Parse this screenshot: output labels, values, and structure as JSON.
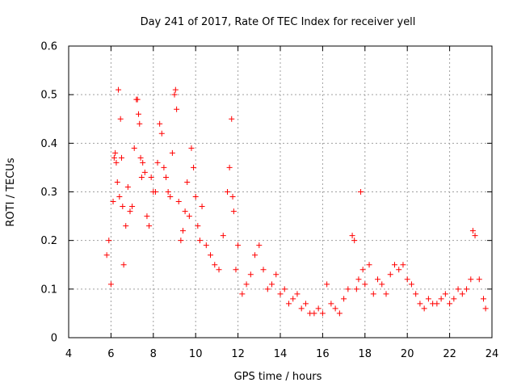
{
  "chart_data": {
    "type": "scatter",
    "title": "Day 241 of 2017, Rate Of TEC Index for receiver yell",
    "xlabel": "GPS time / hours",
    "ylabel": "ROTI / TECUs",
    "xlim": [
      4,
      24
    ],
    "ylim": [
      0,
      0.6
    ],
    "x_ticks": [
      4,
      6,
      8,
      10,
      12,
      14,
      16,
      18,
      20,
      22,
      24
    ],
    "y_ticks": [
      0,
      0.1,
      0.2,
      0.3,
      0.4,
      0.5,
      0.6
    ],
    "x_tick_labels": [
      "4",
      "6",
      "8",
      "10",
      "12",
      "14",
      "16",
      "18",
      "20",
      "22",
      "24"
    ],
    "y_tick_labels": [
      "0",
      "0.1",
      "0.2",
      "0.3",
      "0.4",
      "0.5",
      "0.6"
    ],
    "grid": true,
    "marker": "+",
    "series": [
      {
        "name": "ROTI",
        "color": "#ff0000",
        "x": [
          5.8,
          5.9,
          6.0,
          6.1,
          6.15,
          6.2,
          6.25,
          6.3,
          6.35,
          6.4,
          6.45,
          6.5,
          6.55,
          6.6,
          6.7,
          6.8,
          6.9,
          7.0,
          7.1,
          7.2,
          7.25,
          7.3,
          7.35,
          7.4,
          7.45,
          7.5,
          7.6,
          7.7,
          7.8,
          7.9,
          8.0,
          8.1,
          8.2,
          8.3,
          8.4,
          8.5,
          8.6,
          8.7,
          8.8,
          8.9,
          9.0,
          9.05,
          9.1,
          9.2,
          9.3,
          9.4,
          9.5,
          9.6,
          9.7,
          9.8,
          9.9,
          10.0,
          10.1,
          10.2,
          10.3,
          10.5,
          10.7,
          10.9,
          11.1,
          11.3,
          11.5,
          11.6,
          11.7,
          11.75,
          11.8,
          11.9,
          12.0,
          12.2,
          12.4,
          12.6,
          12.8,
          13.0,
          13.2,
          13.4,
          13.6,
          13.8,
          14.0,
          14.2,
          14.4,
          14.6,
          14.8,
          15.0,
          15.2,
          15.4,
          15.6,
          15.8,
          16.0,
          16.2,
          16.4,
          16.6,
          16.8,
          17.0,
          17.2,
          17.4,
          17.5,
          17.6,
          17.7,
          17.8,
          17.9,
          18.0,
          18.2,
          18.4,
          18.6,
          18.8,
          19.0,
          19.2,
          19.4,
          19.6,
          19.8,
          20.0,
          20.2,
          20.4,
          20.6,
          20.8,
          21.0,
          21.2,
          21.4,
          21.6,
          21.8,
          22.0,
          22.2,
          22.4,
          22.6,
          22.8,
          23.0,
          23.1,
          23.2,
          23.4,
          23.6,
          23.7
        ],
        "y": [
          0.17,
          0.2,
          0.11,
          0.28,
          0.37,
          0.38,
          0.36,
          0.32,
          0.51,
          0.29,
          0.45,
          0.37,
          0.27,
          0.15,
          0.23,
          0.31,
          0.26,
          0.27,
          0.39,
          0.49,
          0.49,
          0.46,
          0.44,
          0.37,
          0.33,
          0.36,
          0.34,
          0.25,
          0.23,
          0.33,
          0.3,
          0.3,
          0.36,
          0.44,
          0.42,
          0.35,
          0.33,
          0.3,
          0.29,
          0.38,
          0.5,
          0.51,
          0.47,
          0.28,
          0.2,
          0.22,
          0.26,
          0.32,
          0.25,
          0.39,
          0.35,
          0.29,
          0.23,
          0.2,
          0.27,
          0.19,
          0.17,
          0.15,
          0.14,
          0.21,
          0.3,
          0.35,
          0.45,
          0.29,
          0.26,
          0.14,
          0.19,
          0.09,
          0.11,
          0.13,
          0.17,
          0.19,
          0.14,
          0.1,
          0.11,
          0.13,
          0.09,
          0.1,
          0.07,
          0.08,
          0.09,
          0.06,
          0.07,
          0.05,
          0.05,
          0.06,
          0.05,
          0.11,
          0.07,
          0.06,
          0.05,
          0.08,
          0.1,
          0.21,
          0.2,
          0.1,
          0.12,
          0.3,
          0.14,
          0.11,
          0.15,
          0.09,
          0.12,
          0.11,
          0.09,
          0.13,
          0.15,
          0.14,
          0.15,
          0.12,
          0.11,
          0.09,
          0.07,
          0.06,
          0.08,
          0.07,
          0.07,
          0.08,
          0.09,
          0.07,
          0.08,
          0.1,
          0.09,
          0.1,
          0.12,
          0.22,
          0.21,
          0.12,
          0.08,
          0.06
        ]
      }
    ]
  }
}
